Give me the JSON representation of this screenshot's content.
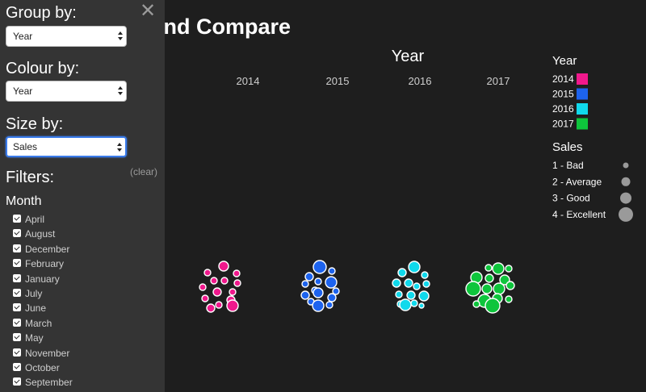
{
  "page": {
    "title": "Group and Compare"
  },
  "viz": {
    "group_header": "Year",
    "groups": [
      "2014",
      "2015",
      "2016",
      "2017"
    ],
    "colors": {
      "2014": "#f0188c",
      "2015": "#1d63ee",
      "2016": "#10d9ec",
      "2017": "#0ec53c"
    },
    "legend_colour_title": "Year",
    "legend_colour_items": [
      "2014",
      "2015",
      "2016",
      "2017"
    ],
    "legend_size_title": "Sales",
    "legend_size_items": [
      "1 - Bad",
      "2 - Average",
      "3 - Good",
      "4 - Excellent"
    ]
  },
  "panel": {
    "close_glyph": "✕",
    "group_label": "Group by:",
    "group_value": "Year",
    "colour_label": "Colour by:",
    "colour_value": "Year",
    "size_label": "Size by:",
    "size_value": "Sales",
    "filters_label": "Filters:",
    "clear_label": "(clear)",
    "month_label": "Month",
    "months": [
      "April",
      "August",
      "December",
      "February",
      "January",
      "July",
      "June",
      "March",
      "May",
      "November",
      "October",
      "September"
    ]
  }
}
